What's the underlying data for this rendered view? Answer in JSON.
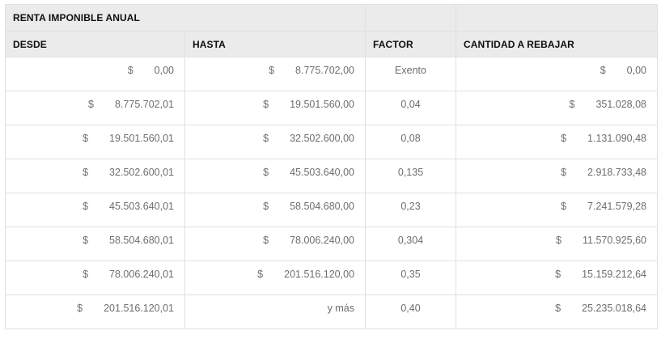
{
  "table": {
    "group_header": "RENTA IMPONIBLE ANUAL",
    "columns": {
      "desde": "DESDE",
      "hasta": "HASTA",
      "factor": "FACTOR",
      "cantidad": "CANTIDAD A REBAJAR"
    },
    "currency_symbol": "$",
    "rows": [
      {
        "desde": "0,00",
        "hasta": "8.775.702,00",
        "factor": "Exento",
        "cantidad": "0,00"
      },
      {
        "desde": "8.775.702,01",
        "hasta": "19.501.560,00",
        "factor": "0,04",
        "cantidad": "351.028,08"
      },
      {
        "desde": "19.501.560,01",
        "hasta": "32.502.600,00",
        "factor": "0,08",
        "cantidad": "1.131.090,48"
      },
      {
        "desde": "32.502.600,01",
        "hasta": "45.503.640,00",
        "factor": "0,135",
        "cantidad": "2.918.733,48"
      },
      {
        "desde": "45.503.640,01",
        "hasta": "58.504.680,00",
        "factor": "0,23",
        "cantidad": "7.241.579,28"
      },
      {
        "desde": "58.504.680,01",
        "hasta": "78.006.240,00",
        "factor": "0,304",
        "cantidad": "11.570.925,60"
      },
      {
        "desde": "78.006.240,01",
        "hasta": "201.516.120,00",
        "factor": "0,35",
        "cantidad": "15.159.212,64"
      },
      {
        "desde": "201.516.120,01",
        "hasta": "y más",
        "factor": "0,40",
        "cantidad": "25.235.018,64"
      }
    ],
    "colors": {
      "header_background": "#ebebeb",
      "header_text": "#0f0f0f",
      "data_text": "#6d6d6d",
      "border_outer": "#cfcfcf",
      "border_inner": "#e0e0e0"
    }
  }
}
